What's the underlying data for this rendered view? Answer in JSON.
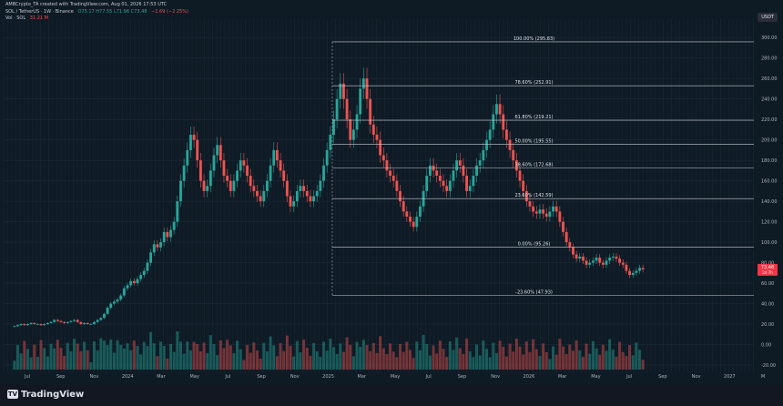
{
  "header": {
    "line1": "AMBCrypto_TA created with TradingView.com, Aug 01, 2026 17:53 UTC",
    "symbol": "SOL / TetherUS · 1W · Binance",
    "ohlc": "O75.17 H77.55 L71.96 C73.48",
    "change": "−1.69 (−2.25%)",
    "volume_line": "Vol · SOL",
    "volume_value": "31.21 M"
  },
  "currency_badge": "USDT",
  "brand": "TradingView",
  "chart_data": {
    "type": "candlestick",
    "timeframe": "1W",
    "y_axis": {
      "ticks": [
        -20,
        0,
        20,
        40,
        60,
        80,
        100,
        120,
        140,
        160,
        180,
        200,
        220,
        240,
        260,
        280,
        300
      ],
      "tick_labels": [
        "-20.00",
        "0.00",
        "20.00",
        "40.00",
        "60.00",
        "80.00",
        "100.00",
        "120.00",
        "140.00",
        "160.00",
        "180.00",
        "200.00",
        "220.00",
        "240.00",
        "260.00",
        "280.00",
        "300.00"
      ],
      "ylim": [
        -28,
        310
      ]
    },
    "x_axis": {
      "labels": [
        "Jul",
        "Sep",
        "Nov",
        "2024",
        "Mar",
        "May",
        "Jul",
        "Sep",
        "Nov",
        "2025",
        "Mar",
        "May",
        "Jul",
        "Sep",
        "Nov",
        "2026",
        "Mar",
        "May",
        "Jul",
        "Sep",
        "Nov",
        "2027",
        "M"
      ],
      "start": "2023-06",
      "end": "2027-05"
    },
    "fib_levels": [
      {
        "label": "100.00% (295.83)",
        "value": 295.83
      },
      {
        "label": "78.60% (252.91)",
        "value": 252.91
      },
      {
        "label": "61.80% (219.21)",
        "value": 219.21
      },
      {
        "label": "50.00% (195.55)",
        "value": 195.55
      },
      {
        "label": "38.60% (172.68)",
        "value": 172.68
      },
      {
        "label": "23.60% (142.59)",
        "value": 142.59
      },
      {
        "label": "0.00% (95.26)",
        "value": 95.26
      },
      {
        "label": "-23.60% (47.93)",
        "value": 47.93
      }
    ],
    "price_label": {
      "value": "73.48",
      "countdown": "2d 7h"
    },
    "close_series": [
      18,
      19,
      20,
      19,
      20,
      21,
      20,
      20,
      19,
      20,
      21,
      22,
      24,
      23,
      22,
      21,
      22,
      23,
      24,
      22,
      20,
      21,
      20,
      20,
      22,
      24,
      26,
      30,
      36,
      40,
      42,
      44,
      48,
      55,
      58,
      62,
      60,
      64,
      68,
      72,
      80,
      90,
      98,
      95,
      100,
      110,
      105,
      112,
      120,
      140,
      160,
      175,
      190,
      205,
      200,
      180,
      160,
      150,
      155,
      170,
      185,
      195,
      180,
      165,
      160,
      150,
      160,
      170,
      180,
      175,
      165,
      155,
      150,
      145,
      140,
      150,
      160,
      175,
      190,
      180,
      170,
      160,
      145,
      135,
      140,
      150,
      155,
      150,
      145,
      140,
      145,
      150,
      160,
      175,
      190,
      205,
      220,
      240,
      255,
      240,
      220,
      200,
      210,
      225,
      250,
      260,
      240,
      215,
      205,
      200,
      185,
      180,
      170,
      165,
      160,
      150,
      140,
      130,
      125,
      120,
      115,
      125,
      135,
      150,
      165,
      175,
      170,
      165,
      160,
      155,
      150,
      160,
      170,
      180,
      175,
      165,
      150,
      155,
      165,
      175,
      180,
      190,
      200,
      210,
      225,
      235,
      225,
      210,
      200,
      190,
      180,
      170,
      160,
      150,
      140,
      135,
      130,
      128,
      132,
      128,
      125,
      130,
      135,
      130,
      120,
      110,
      100,
      95,
      88,
      84,
      86,
      82,
      78,
      80,
      82,
      85,
      80,
      78,
      82,
      85,
      86,
      84,
      80,
      78,
      72,
      68,
      70,
      72,
      75,
      73.48
    ]
  }
}
